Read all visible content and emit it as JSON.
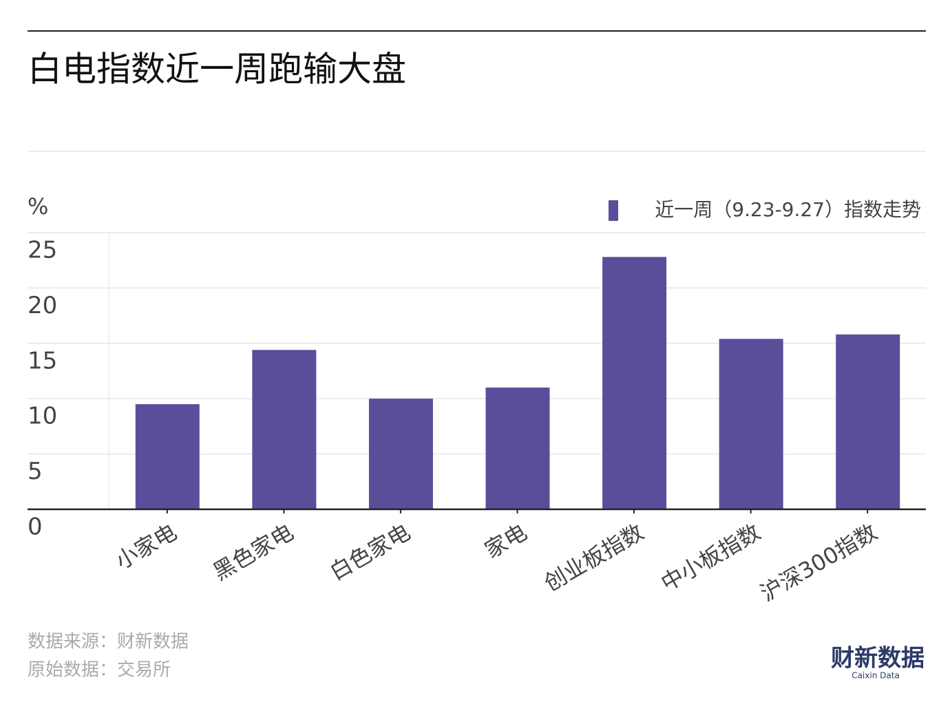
{
  "chart_data": {
    "type": "bar",
    "title": "白电指数近一周跑输大盘",
    "y_label": "%",
    "categories": [
      "小家电",
      "黑色家电",
      "白色家电",
      "家电",
      "创业板指数",
      "中小板指数",
      "沪深300指数"
    ],
    "series": [
      {
        "name": "近一周（9.23-9.27）指数走势",
        "color": "#5a4e9b",
        "values": [
          9.5,
          14.4,
          10.0,
          11.0,
          22.8,
          15.4,
          15.8
        ]
      }
    ],
    "ylim": [
      0,
      25
    ],
    "yticks": [
      0,
      5,
      10,
      15,
      20,
      25
    ],
    "grid": true,
    "legend": "top-right",
    "footnotes": [
      "数据来源：财新数据",
      "原始数据：交易所"
    ],
    "logo": {
      "name": "财新数据",
      "subtitle": "Caixin Data"
    }
  }
}
